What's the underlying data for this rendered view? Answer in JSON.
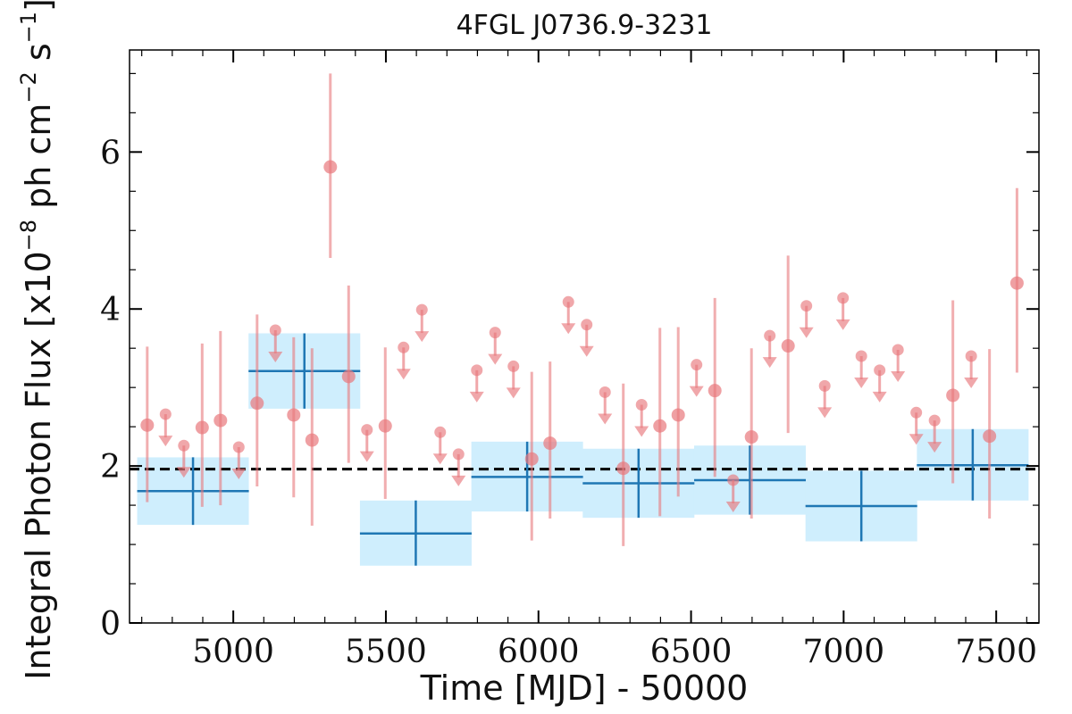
{
  "chart_data": {
    "type": "scatter",
    "title": "4FGL J0736.9-3231",
    "xlabel": "Time [MJD] - 50000",
    "ylabel": "Integral Photon Flux [x10",
    "ylabel_exp1": "−8",
    "ylabel_mid": " ph cm",
    "ylabel_exp2": "−2",
    "ylabel_mid2": " s",
    "ylabel_exp3": "−1",
    "ylabel_end": "]",
    "xlim": [
      4660,
      7640
    ],
    "ylim": [
      0,
      7.3
    ],
    "x_ticks": [
      5000,
      5500,
      6000,
      6500,
      7000,
      7500
    ],
    "y_ticks": [
      0,
      2,
      4,
      6
    ],
    "mean_flux": 1.96,
    "colors": {
      "points": "#e8787c",
      "bins_line": "#1f77b4",
      "bins_fill": "#cfeefd",
      "mean_line": "#000000"
    },
    "series": [
      {
        "kind": "yearly_bins",
        "points": [
          {
            "x": 4868,
            "xerr": 183,
            "y": 1.68,
            "ylo": 1.25,
            "yhi": 2.11
          },
          {
            "x": 5233,
            "xerr": 183,
            "y": 3.21,
            "ylo": 2.73,
            "yhi": 3.69
          },
          {
            "x": 5598,
            "xerr": 183,
            "y": 1.14,
            "ylo": 0.73,
            "yhi": 1.56
          },
          {
            "x": 5963,
            "xerr": 183,
            "y": 1.86,
            "ylo": 1.42,
            "yhi": 2.31
          },
          {
            "x": 6328,
            "xerr": 183,
            "y": 1.78,
            "ylo": 1.34,
            "yhi": 2.22
          },
          {
            "x": 6693,
            "xerr": 183,
            "y": 1.82,
            "ylo": 1.38,
            "yhi": 2.26
          },
          {
            "x": 7058,
            "xerr": 183,
            "y": 1.49,
            "ylo": 1.04,
            "yhi": 1.94
          },
          {
            "x": 7423,
            "xerr": 183,
            "y": 2.01,
            "ylo": 1.56,
            "yhi": 2.47
          }
        ]
      },
      {
        "kind": "monthly",
        "points": [
          {
            "x": 4718,
            "y": 2.52,
            "ylo": 1.54,
            "yhi": 3.52,
            "ul": false
          },
          {
            "x": 4778,
            "y": 2.66,
            "ul": true
          },
          {
            "x": 4838,
            "y": 2.26,
            "ul": true
          },
          {
            "x": 4898,
            "y": 2.49,
            "ylo": 1.48,
            "yhi": 3.56,
            "ul": false
          },
          {
            "x": 4958,
            "y": 2.58,
            "ylo": 1.5,
            "yhi": 3.72,
            "ul": false
          },
          {
            "x": 5018,
            "y": 2.24,
            "ul": true
          },
          {
            "x": 5078,
            "y": 2.8,
            "ylo": 1.74,
            "yhi": 3.93,
            "ul": false
          },
          {
            "x": 5138,
            "y": 3.73,
            "ul": true
          },
          {
            "x": 5198,
            "y": 2.65,
            "ylo": 1.6,
            "yhi": 3.64,
            "ul": false
          },
          {
            "x": 5258,
            "y": 2.33,
            "ylo": 1.24,
            "yhi": 3.5,
            "ul": false
          },
          {
            "x": 5318,
            "y": 5.81,
            "ylo": 4.65,
            "yhi": 7.0,
            "ul": false
          },
          {
            "x": 5378,
            "y": 3.14,
            "ylo": 2.04,
            "yhi": 4.3,
            "ul": false
          },
          {
            "x": 5438,
            "y": 2.46,
            "ul": true
          },
          {
            "x": 5498,
            "y": 2.51,
            "ylo": 1.58,
            "yhi": 3.51,
            "ul": false
          },
          {
            "x": 5558,
            "y": 3.51,
            "ul": true
          },
          {
            "x": 5618,
            "y": 3.99,
            "ul": true
          },
          {
            "x": 5678,
            "y": 2.43,
            "ul": true
          },
          {
            "x": 5738,
            "y": 2.15,
            "ul": true
          },
          {
            "x": 5798,
            "y": 3.22,
            "ul": true
          },
          {
            "x": 5858,
            "y": 3.7,
            "ul": true
          },
          {
            "x": 5918,
            "y": 3.27,
            "ul": true
          },
          {
            "x": 5978,
            "y": 2.09,
            "ylo": 1.05,
            "yhi": 3.2,
            "ul": false
          },
          {
            "x": 6038,
            "y": 2.29,
            "ylo": 1.33,
            "yhi": 3.33,
            "ul": false
          },
          {
            "x": 6098,
            "y": 4.09,
            "ul": true
          },
          {
            "x": 6158,
            "y": 3.8,
            "ul": true
          },
          {
            "x": 6218,
            "y": 2.94,
            "ul": true
          },
          {
            "x": 6278,
            "y": 1.97,
            "ylo": 0.98,
            "yhi": 3.05,
            "ul": false
          },
          {
            "x": 6338,
            "y": 2.78,
            "ul": true
          },
          {
            "x": 6398,
            "y": 2.51,
            "ylo": 1.36,
            "yhi": 3.76,
            "ul": false
          },
          {
            "x": 6458,
            "y": 2.65,
            "ylo": 1.61,
            "yhi": 3.77,
            "ul": false
          },
          {
            "x": 6518,
            "y": 3.29,
            "ul": true
          },
          {
            "x": 6578,
            "y": 2.96,
            "ylo": 1.86,
            "yhi": 4.14,
            "ul": false
          },
          {
            "x": 6638,
            "y": 1.82,
            "ul": true
          },
          {
            "x": 6698,
            "y": 2.37,
            "ylo": 1.33,
            "yhi": 3.5,
            "ul": false
          },
          {
            "x": 6758,
            "y": 3.66,
            "ul": true
          },
          {
            "x": 6818,
            "y": 3.53,
            "ylo": 2.42,
            "yhi": 4.68,
            "ul": false
          },
          {
            "x": 6878,
            "y": 4.04,
            "ul": true
          },
          {
            "x": 6938,
            "y": 3.02,
            "ul": true
          },
          {
            "x": 6998,
            "y": 4.14,
            "ul": true
          },
          {
            "x": 7058,
            "y": 3.4,
            "ul": true
          },
          {
            "x": 7118,
            "y": 3.22,
            "ul": true
          },
          {
            "x": 7178,
            "y": 3.48,
            "ul": true
          },
          {
            "x": 7238,
            "y": 2.68,
            "ul": true
          },
          {
            "x": 7298,
            "y": 2.58,
            "ul": true
          },
          {
            "x": 7358,
            "y": 2.9,
            "ylo": 1.78,
            "yhi": 4.11,
            "ul": false
          },
          {
            "x": 7418,
            "y": 3.4,
            "ul": true
          },
          {
            "x": 7478,
            "y": 2.38,
            "ylo": 1.33,
            "yhi": 3.49,
            "ul": false
          },
          {
            "x": 7568,
            "y": 4.33,
            "ylo": 3.19,
            "yhi": 5.54,
            "ul": false
          }
        ]
      }
    ]
  }
}
